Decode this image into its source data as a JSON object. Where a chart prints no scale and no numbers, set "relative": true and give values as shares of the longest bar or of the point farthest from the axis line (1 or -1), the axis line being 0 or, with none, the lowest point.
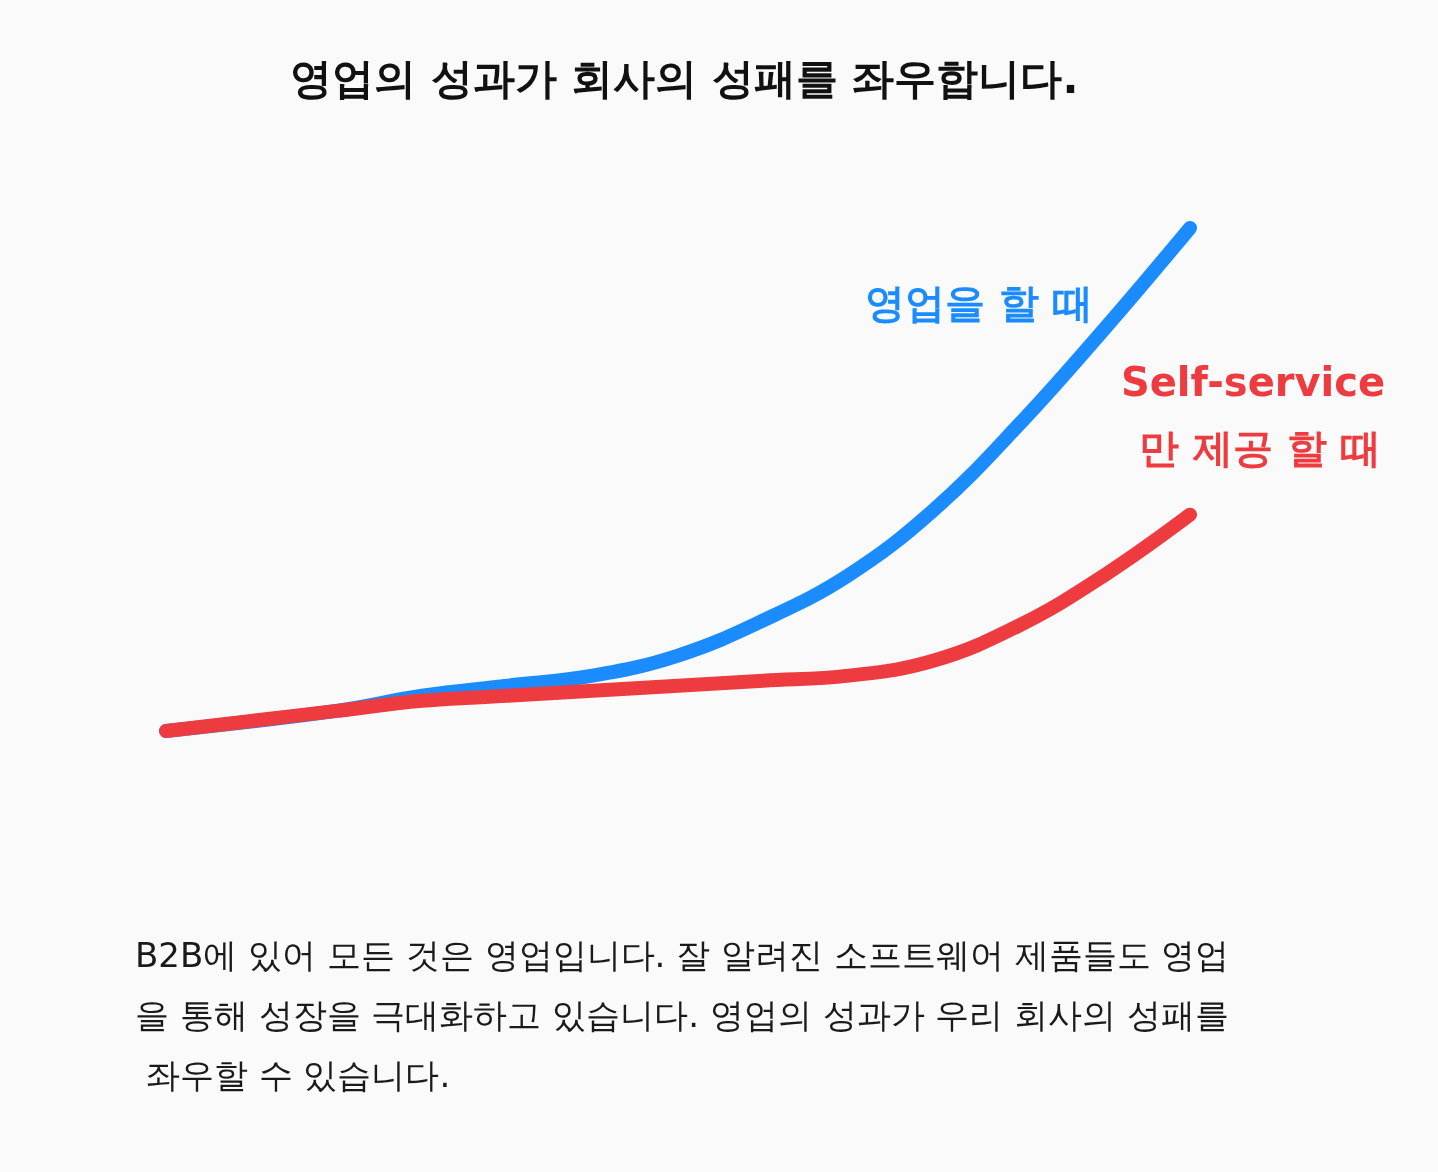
{
  "chart_data": {
    "type": "line",
    "title": "영업의 성과가 회사의 성패를 좌우합니다.",
    "relative": true,
    "categories": [
      null,
      null,
      null,
      null,
      null,
      null,
      null,
      null,
      null,
      null,
      null,
      null,
      null
    ],
    "series": [
      {
        "name": "영업을 할 때",
        "color": "#1a8cff",
        "values": [
          0,
          null,
          0.04,
          0.07,
          0.09,
          0.11,
          0.15,
          0.22,
          0.31,
          0.44,
          0.61,
          0.8,
          1
        ]
      },
      {
        "name": "Self-service 만 제공 할 때",
        "color": "#ee3b3f",
        "values": [
          0,
          0.02,
          0.04,
          0.06,
          0.07,
          0.08,
          0.09,
          0.1,
          0.11,
          0.14,
          0.21,
          0.31,
          0.43
        ]
      }
    ],
    "annotations": [
      "B2B에 있어 모든 것은 영업입니다. 잘 알려진 소프트웨어 제품들도 영업을 통해 성장을 극대화하고 있습니다. 영업의 성과가 우리 회사의 성패를 좌우할 수 있습니다."
    ]
  }
}
